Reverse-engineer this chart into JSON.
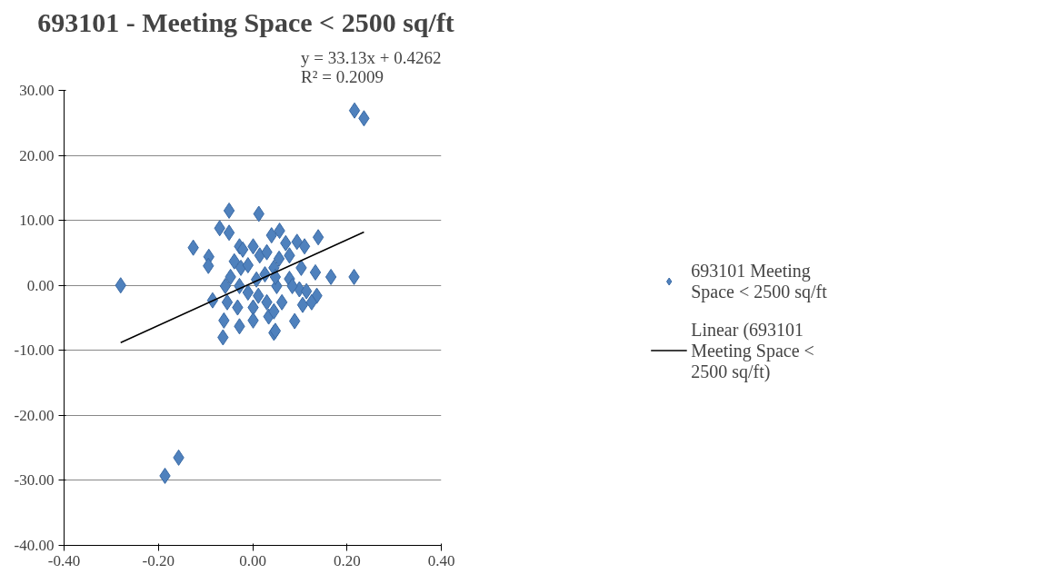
{
  "chart_data": {
    "type": "scatter",
    "title": "693101 -  Meeting Space  < 2500 sq/ft",
    "annotations": [
      "y = 33.13x + 0.4262",
      "R² = 0.2009"
    ],
    "xlim": [
      -0.4,
      0.4
    ],
    "xticks": [
      {
        "value": -0.4,
        "label": "-0.40"
      },
      {
        "value": -0.2,
        "label": "-0.20"
      },
      {
        "value": 0,
        "label": "0.00"
      },
      {
        "value": 0.2,
        "label": "0.20"
      },
      {
        "value": 0.4,
        "label": "0.40"
      }
    ],
    "ylim": [
      -40,
      30
    ],
    "yticks": [
      {
        "value": -40,
        "label": "-40.00"
      },
      {
        "value": -30,
        "label": "-30.00"
      },
      {
        "value": -20,
        "label": "-20.00"
      },
      {
        "value": -10,
        "label": "-10.00"
      },
      {
        "value": 0,
        "label": "0.00"
      },
      {
        "value": 10,
        "label": "10.00"
      },
      {
        "value": 20,
        "label": "20.00"
      },
      {
        "value": 30,
        "label": "30.00"
      }
    ],
    "grid": "y",
    "legend": "right",
    "marker": "diamond",
    "series": [
      {
        "name": "693101 Meeting Space < 2500 sq/ft",
        "color": "#4f81bd",
        "x": [
          -0.28,
          -0.186,
          -0.157,
          0.216,
          0.236,
          -0.126,
          -0.093,
          -0.094,
          -0.085,
          -0.061,
          -0.063,
          -0.05,
          -0.07,
          -0.05,
          -0.028,
          -0.021,
          0.001,
          0.013,
          0.04,
          -0.039,
          -0.025,
          -0.01,
          0.015,
          0.03,
          -0.047,
          -0.058,
          -0.028,
          -0.01,
          0.008,
          0.026,
          0.045,
          -0.054,
          -0.032,
          0.001,
          0.012,
          0.03,
          -0.028,
          0.001,
          0.045,
          0.051,
          0.034,
          0.057,
          0.07,
          0.094,
          0.11,
          0.139,
          0.056,
          0.078,
          0.103,
          0.133,
          0.166,
          0.215,
          0.048,
          0.078,
          0.099,
          0.114,
          0.136,
          0.062,
          0.106,
          0.125,
          0.045,
          0.089,
          0.048,
          0.084
        ],
        "values": [
          0.0,
          -29.3,
          -26.5,
          26.9,
          25.7,
          5.8,
          4.4,
          3.0,
          -2.3,
          -5.4,
          -8.0,
          11.5,
          8.8,
          8.1,
          6.0,
          5.5,
          6.0,
          11.0,
          7.7,
          3.7,
          2.7,
          3.1,
          4.6,
          5.1,
          1.3,
          -0.1,
          -0.1,
          -1.1,
          0.9,
          1.7,
          2.7,
          -2.6,
          -3.4,
          -3.4,
          -1.6,
          -2.6,
          -6.3,
          -5.4,
          -7.3,
          -0.1,
          -4.8,
          8.4,
          6.5,
          6.7,
          6.0,
          7.4,
          4.1,
          4.6,
          2.7,
          2.0,
          1.3,
          1.3,
          1.3,
          1.0,
          -0.6,
          -0.9,
          -1.6,
          -2.6,
          -3.0,
          -2.6,
          -4.0,
          -5.5,
          -7.0,
          -0.1
        ]
      },
      {
        "name": "Linear (693101 Meeting Space < 2500 sq/ft)",
        "color": "#000000",
        "type": "line",
        "marker": "none",
        "line_style": "solid",
        "x": [
          -0.28,
          0.236
        ],
        "values": [
          -8.8,
          8.2
        ]
      }
    ]
  }
}
